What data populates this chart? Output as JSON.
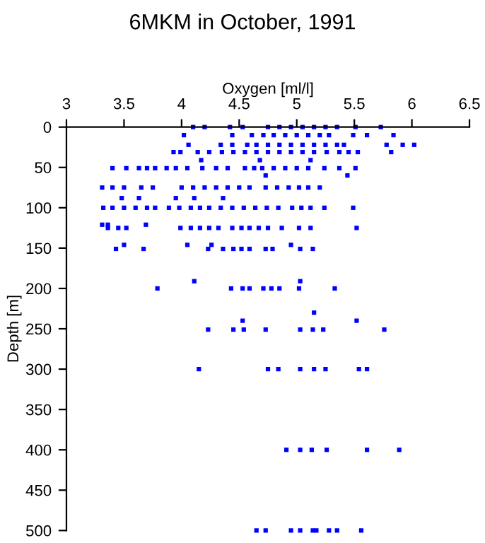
{
  "chart_data": {
    "type": "scatter",
    "title": "6MKM in October, 1991",
    "xlabel": "Oxygen [ml/l]",
    "ylabel": "Depth [m]",
    "xlim": [
      3,
      6.5
    ],
    "xticks": [
      3,
      3.5,
      4,
      4.5,
      5,
      5.5,
      6,
      6.5
    ],
    "ylim": [
      500,
      0
    ],
    "yticks": [
      0,
      50,
      100,
      150,
      200,
      250,
      300,
      350,
      400,
      450,
      500
    ],
    "grid": false,
    "legend": false,
    "marker": "square",
    "series": [
      {
        "color": "#0000ff",
        "x": [
          4.1,
          4.2,
          4.42,
          4.53,
          4.75,
          4.85,
          4.95,
          5.05,
          5.15,
          5.25,
          5.35,
          5.51,
          5.73
        ],
        "values": [
          0,
          0,
          0,
          0,
          0,
          0,
          0,
          0,
          0,
          0,
          0,
          0,
          0
        ]
      },
      {
        "color": "#0000ff",
        "x": [
          4.02,
          4.44,
          4.61,
          4.71,
          4.8,
          4.9,
          5.0,
          5.1,
          5.2,
          5.28,
          5.49,
          5.61,
          5.84
        ],
        "values": [
          10,
          10,
          10,
          10,
          10,
          10,
          10,
          10,
          10,
          10,
          10,
          10,
          10
        ]
      },
      {
        "color": "#0000ff",
        "x": [
          4.06,
          4.34,
          4.44,
          4.57,
          4.65,
          4.75,
          4.85,
          4.95,
          5.05,
          5.15,
          5.25,
          5.35,
          5.41,
          5.78,
          5.92,
          6.02
        ],
        "values": [
          22,
          22,
          22,
          22,
          22,
          22,
          22,
          22,
          22,
          22,
          22,
          22,
          22,
          22,
          22,
          22
        ]
      },
      {
        "color": "#0000ff",
        "x": [
          3.93,
          3.99,
          4.14,
          4.24,
          4.35,
          4.45,
          4.55,
          4.65,
          4.75,
          4.85,
          4.95,
          5.05,
          5.15,
          5.26,
          5.37,
          5.45,
          5.53,
          5.82
        ],
        "values": [
          31,
          31,
          31,
          31,
          31,
          31,
          31,
          31,
          31,
          31,
          31,
          31,
          31,
          31,
          31,
          31,
          31,
          31
        ]
      },
      {
        "color": "#0000ff",
        "x": [
          4.17,
          4.68,
          5.12
        ],
        "values": [
          41,
          41,
          41
        ]
      },
      {
        "color": "#0000ff",
        "x": [
          3.4,
          3.52,
          3.63,
          3.7,
          3.77,
          3.87,
          3.95,
          4.05,
          4.18,
          4.3,
          4.4,
          4.55,
          4.63,
          4.7,
          4.8,
          4.9,
          5.0,
          5.1,
          5.24,
          5.37,
          5.51
        ],
        "values": [
          51,
          51,
          51,
          51,
          51,
          51,
          51,
          51,
          51,
          51,
          51,
          51,
          51,
          51,
          51,
          51,
          51,
          51,
          51,
          51,
          51
        ]
      },
      {
        "color": "#0000ff",
        "x": [
          4.73,
          5.44
        ],
        "values": [
          60,
          60
        ]
      },
      {
        "color": "#0000ff",
        "x": [
          3.31,
          3.4,
          3.5,
          3.65,
          3.75,
          4.0,
          4.1,
          4.2,
          4.3,
          4.4,
          4.5,
          4.59,
          4.73,
          4.83,
          4.93,
          5.02,
          5.1,
          5.2
        ],
        "values": [
          75,
          75,
          75,
          75,
          75,
          75,
          75,
          75,
          75,
          75,
          75,
          75,
          75,
          75,
          75,
          75,
          75,
          75
        ]
      },
      {
        "color": "#0000ff",
        "x": [
          3.48,
          3.63,
          3.95,
          4.11,
          4.36
        ],
        "values": [
          88,
          88,
          88,
          88,
          88
        ]
      },
      {
        "color": "#0000ff",
        "x": [
          3.32,
          3.4,
          3.5,
          3.6,
          3.7,
          3.77,
          3.89,
          3.98,
          4.08,
          4.16,
          4.24,
          4.34,
          4.44,
          4.54,
          4.64,
          4.74,
          4.84,
          4.96,
          5.04,
          5.12,
          5.24,
          5.49
        ],
        "values": [
          100,
          100,
          100,
          100,
          100,
          100,
          100,
          100,
          100,
          100,
          100,
          100,
          100,
          100,
          100,
          100,
          100,
          100,
          100,
          100,
          100,
          100
        ]
      },
      {
        "color": "#0000ff",
        "x": [
          3.31,
          3.36,
          3.69
        ],
        "values": [
          121,
          121,
          121
        ]
      },
      {
        "color": "#0000ff",
        "x": [
          3.36,
          3.45,
          3.52,
          3.99,
          4.08,
          4.16,
          4.24,
          4.32,
          4.44,
          4.52,
          4.59,
          4.67,
          4.75,
          4.87,
          5.02,
          5.12,
          5.52
        ],
        "values": [
          125,
          125,
          125,
          125,
          125,
          125,
          125,
          125,
          125,
          125,
          125,
          125,
          125,
          125,
          125,
          125,
          125
        ]
      },
      {
        "color": "#0000ff",
        "x": [
          3.5,
          4.05,
          4.26,
          4.95
        ],
        "values": [
          146,
          146,
          146,
          146
        ]
      },
      {
        "color": "#0000ff",
        "x": [
          3.43,
          3.67,
          4.23,
          4.36,
          4.45,
          4.52,
          4.59,
          4.73,
          4.79,
          5.03,
          5.14
        ],
        "values": [
          151,
          151,
          151,
          151,
          151,
          151,
          151,
          151,
          151,
          151,
          151
        ]
      },
      {
        "color": "#0000ff",
        "x": [
          4.11,
          5.03
        ],
        "values": [
          191,
          191
        ]
      },
      {
        "color": "#0000ff",
        "x": [
          3.79,
          4.43,
          4.53,
          4.59,
          4.71,
          4.78,
          4.85,
          5.02,
          5.33
        ],
        "values": [
          200,
          200,
          200,
          200,
          200,
          200,
          200,
          200,
          200
        ]
      },
      {
        "color": "#0000ff",
        "x": [
          5.15
        ],
        "values": [
          230
        ]
      },
      {
        "color": "#0000ff",
        "x": [
          4.53,
          5.52
        ],
        "values": [
          240,
          240
        ]
      },
      {
        "color": "#0000ff",
        "x": [
          4.23,
          4.45,
          4.54,
          4.73,
          5.03,
          5.14,
          5.23,
          5.76
        ],
        "values": [
          251,
          251,
          251,
          251,
          251,
          251,
          251,
          251
        ]
      },
      {
        "color": "#0000ff",
        "x": [
          4.15,
          4.75,
          4.84,
          5.03,
          5.15,
          5.25,
          5.54,
          5.61
        ],
        "values": [
          300,
          300,
          300,
          300,
          300,
          300,
          300,
          300
        ]
      },
      {
        "color": "#0000ff",
        "x": [
          4.91,
          5.03,
          5.13,
          5.26,
          5.61,
          5.89
        ],
        "values": [
          400,
          400,
          400,
          400,
          400,
          400
        ]
      },
      {
        "color": "#0000ff",
        "x": [
          4.65,
          4.73,
          4.95,
          5.03,
          5.14,
          5.17,
          5.28,
          5.35,
          5.56
        ],
        "values": [
          500,
          500,
          500,
          500,
          500,
          500,
          500,
          500,
          500
        ]
      }
    ]
  }
}
